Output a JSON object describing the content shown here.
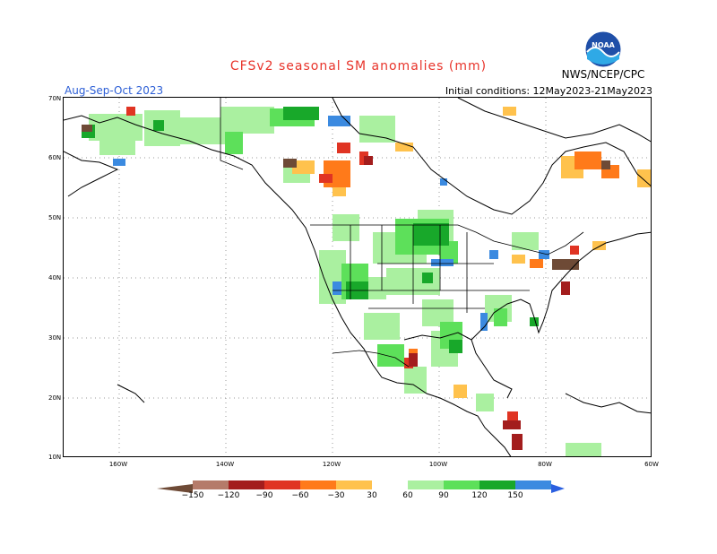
{
  "title": "CFSv2 seasonal SM anomalies (mm)",
  "period": "Aug-Sep-Oct 2023",
  "initial_conditions": "Initial conditions: 12May2023-21May2023",
  "agency": "NWS/NCEP/CPC",
  "logo_text": "NOAA",
  "lat_labels": [
    "70N",
    "60N",
    "50N",
    "40N",
    "30N",
    "20N",
    "10N"
  ],
  "lon_labels": [
    "160W",
    "140W",
    "120W",
    "100W",
    "80W",
    "60W"
  ],
  "colorbar": {
    "labels": [
      "−150",
      "−120",
      "−90",
      "−60",
      "−30",
      "30",
      "60",
      "90",
      "120",
      "150"
    ],
    "colors": [
      "#8b5a3c",
      "#b57b6a",
      "#a31d1d",
      "#e03423",
      "#ff7a1a",
      "#ffc24d",
      "#ffffff",
      "#aaf0a0",
      "#5de05a",
      "#18a82a",
      "#3b8ae0",
      "#2a5fe0"
    ]
  },
  "legend_colors": {
    "dry_extreme": "#6e4a36",
    "dry_strong": "#b57b6a",
    "dry_red": "#a31d1d",
    "dry_orange_red": "#e03423",
    "dry_orange": "#ff7a1a",
    "dry_light": "#ffc24d",
    "wet_light": "#aaf0a0",
    "wet_mid": "#5de05a",
    "wet_strong": "#18a82a",
    "wet_blue": "#3b8ae0"
  }
}
